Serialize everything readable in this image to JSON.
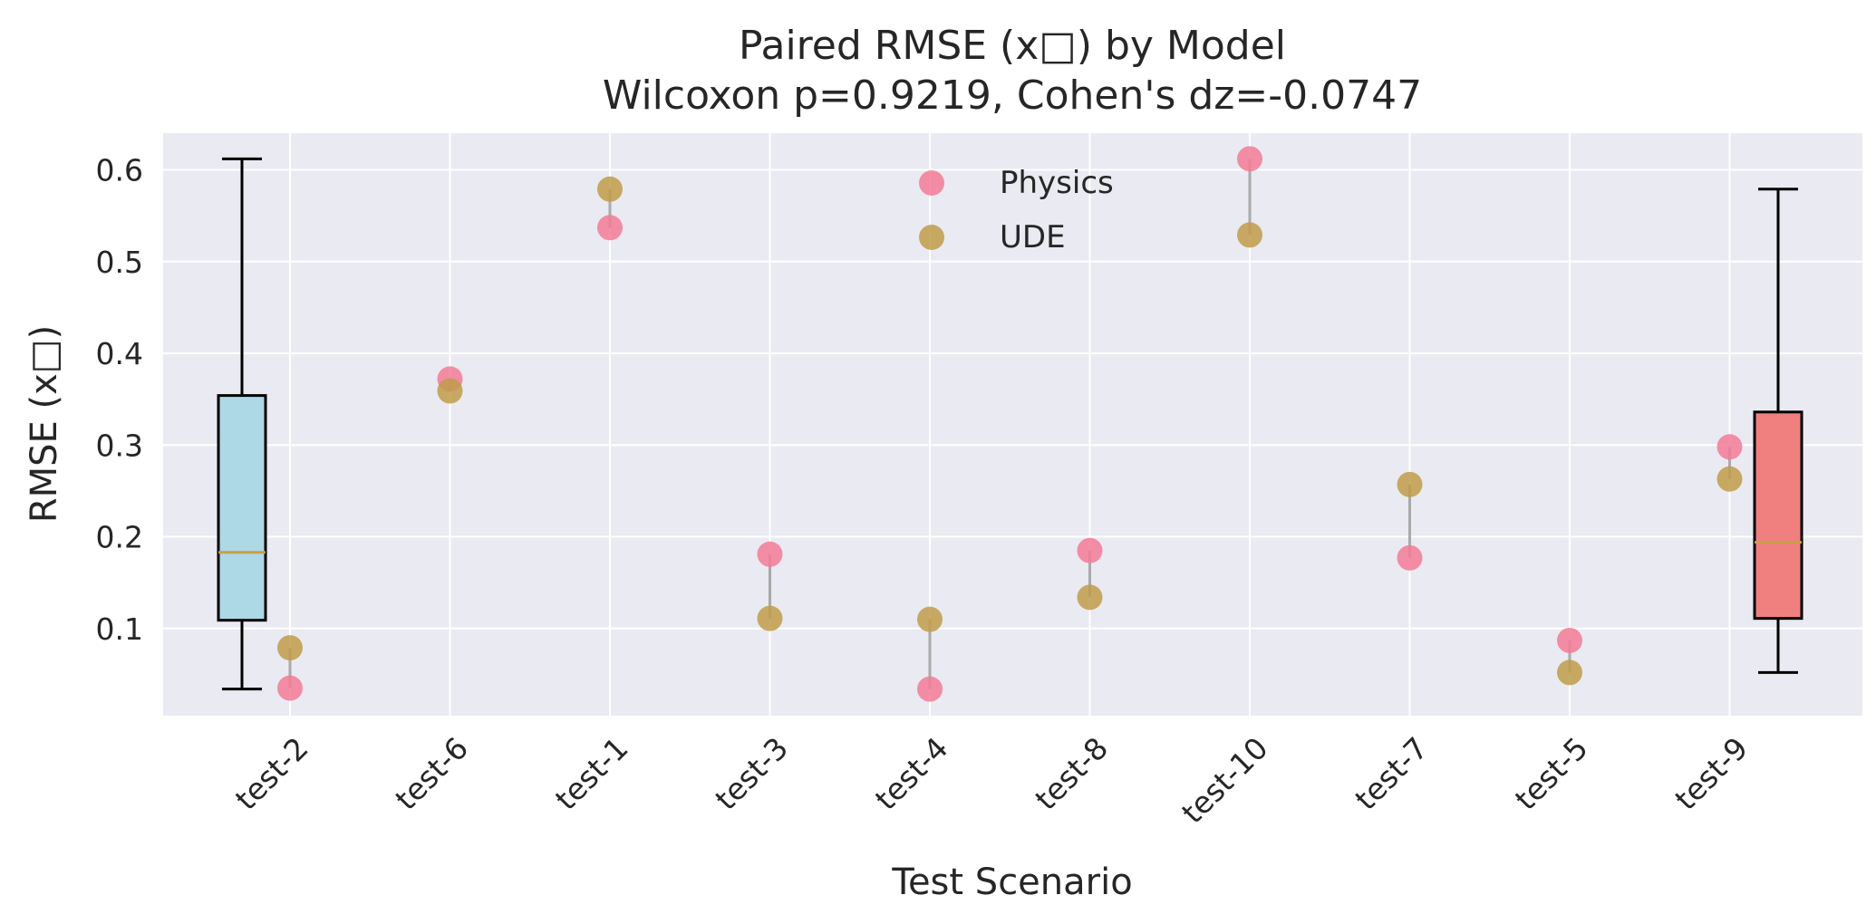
{
  "chart_data": {
    "type": "scatter",
    "title": "Paired RMSE (x□) by Model",
    "subtitle": "Wilcoxon p=0.9219, Cohen's dz=-0.0747",
    "xlabel": "Test Scenario",
    "ylabel": "RMSE (x□)",
    "categories": [
      "test-2",
      "test-6",
      "test-1",
      "test-3",
      "test-4",
      "test-8",
      "test-10",
      "test-7",
      "test-5",
      "test-9"
    ],
    "ylim": [
      0.005,
      0.64
    ],
    "yticks": [
      0.1,
      0.2,
      0.3,
      0.4,
      0.5,
      0.6
    ],
    "ytick_labels": [
      "0.1",
      "0.2",
      "0.3",
      "0.4",
      "0.5",
      "0.6"
    ],
    "grid": true,
    "legend_position": "top-center",
    "series": [
      {
        "name": "Physics",
        "color": "#f37b96",
        "values": [
          0.035,
          0.372,
          0.537,
          0.181,
          0.034,
          0.185,
          0.612,
          0.177,
          0.087,
          0.298
        ]
      },
      {
        "name": "UDE",
        "color": "#bf9c4a",
        "values": [
          0.079,
          0.359,
          0.579,
          0.111,
          0.11,
          0.134,
          0.529,
          0.257,
          0.052,
          0.263
        ]
      }
    ],
    "boxplots": [
      {
        "series": "Physics",
        "position": "left",
        "fill": "#add8e6",
        "whisker_low": 0.034,
        "q1": 0.109,
        "median": 0.183,
        "q3": 0.354,
        "whisker_high": 0.612
      },
      {
        "series": "UDE",
        "position": "right",
        "fill": "#f08080",
        "whisker_low": 0.052,
        "q1": 0.111,
        "median": 0.194,
        "q3": 0.336,
        "whisker_high": 0.579
      }
    ],
    "colors": {
      "plot_background": "#eaeaf2",
      "grid": "#ffffff",
      "median_line": "#c8a046",
      "pair_line": "#808080",
      "box_edge": "#000000"
    }
  }
}
